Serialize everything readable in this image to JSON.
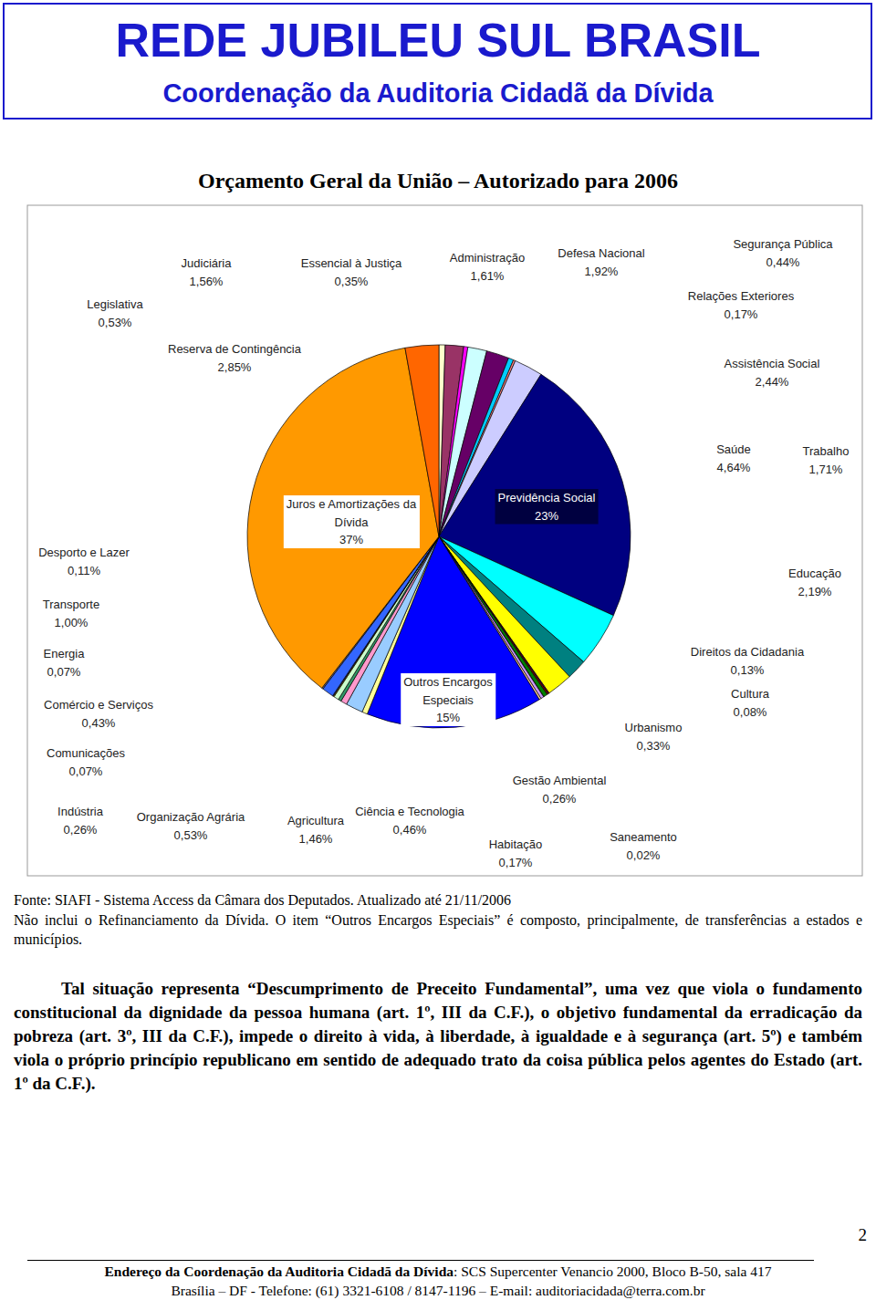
{
  "header": {
    "title": "REDE JUBILEU SUL BRASIL",
    "subtitle": "Coordenação da Auditoria Cidadã da Dívida"
  },
  "chart_data": {
    "type": "pie",
    "title": "Orçamento Geral da União – Autorizado para 2006",
    "categories": [
      "Legislativa",
      "Judiciária",
      "Essencial à Justiça",
      "Administração",
      "Defesa Nacional",
      "Segurança Pública",
      "Relações Exteriores",
      "Assistência Social",
      "Previdência Social",
      "Saúde",
      "Trabalho",
      "Educação",
      "Cultura",
      "Direitos da Cidadania",
      "Urbanismo",
      "Saneamento",
      "Gestão Ambiental",
      "Habitação",
      "Outros Encargos Especiais",
      "Ciência e Tecnologia",
      "Agricultura",
      "Organização Agrária",
      "Indústria",
      "Comércio e Serviços",
      "Comunicações",
      "Energia",
      "Transporte",
      "Desporto e Lazer",
      "Juros e Amortizações da Dívida",
      "Reserva de Contingência"
    ],
    "values": [
      0.53,
      1.56,
      0.35,
      1.61,
      1.92,
      0.44,
      0.17,
      2.44,
      23,
      4.64,
      1.71,
      2.19,
      0.08,
      0.13,
      0.33,
      0.02,
      0.26,
      0.17,
      15,
      0.46,
      1.46,
      0.53,
      0.26,
      0.43,
      0.07,
      0.07,
      1.0,
      0.11,
      37,
      2.85
    ],
    "value_labels": [
      "0,53%",
      "1,56%",
      "0,35%",
      "1,61%",
      "1,92%",
      "0,44%",
      "0,17%",
      "2,44%",
      "23%",
      "4,64%",
      "1,71%",
      "2,19%",
      "0,08%",
      "0,13%",
      "0,33%",
      "0,02%",
      "0,26%",
      "0,17%",
      "15%",
      "0,46%",
      "1,46%",
      "0,53%",
      "0,26%",
      "0,43%",
      "0,07%",
      "0,07%",
      "1,00%",
      "0,11%",
      "37%",
      "2,85%"
    ],
    "colors": [
      "#FFFFCC",
      "#993366",
      "#FF00FF",
      "#CCFFFF",
      "#660066",
      "#00CCFF",
      "#FF8080",
      "#CCCCFF",
      "#000080",
      "#00FFFF",
      "#008080",
      "#FFFF00",
      "#800080",
      "#800000",
      "#008000",
      "#99CC00",
      "#CC99FF",
      "#FFCC99",
      "#0000FF",
      "#FFFF99",
      "#99CCFF",
      "#FF99CC",
      "#339966",
      "#CCFFCC",
      "#FFCC00",
      "#333399",
      "#3366FF",
      "#666699",
      "#FF9900",
      "#FF6600"
    ],
    "data_labels": true
  },
  "notes": [
    "Fonte: SIAFI - Sistema Access da Câmara dos Deputados. Atualizado até 21/11/2006",
    "Não inclui o Refinanciamento da Dívida. O item “Outros Encargos Especiais” é composto, principalmente, de transferências a estados e municípios."
  ],
  "paragraph": "Tal situação representa “Descumprimento de Preceito Fundamental”, uma vez que viola o fundamento constitucional da dignidade da pessoa humana (art. 1º, III da C.F.), o objetivo fundamental da erradicação da pobreza (art. 3º, III da C.F.), impede o direito à vida, à liberdade, à igualdade e à segurança (art. 5º) e também viola o próprio princípio republicano em sentido de adequado trato da coisa pública pelos agentes do Estado (art. 1º da C.F.).",
  "page_number": 2,
  "footer": {
    "address_label": "Endereço da Coordenação da Auditoria Cidadã da Dívida",
    "address": ": SCS Supercenter Venancio 2000, Bloco B-50, sala 417",
    "contact": "Brasília – DF - Telefone: (61) 3321-6108 / 8147-1196 – E-mail: auditoriacidada@terra.com.br"
  }
}
